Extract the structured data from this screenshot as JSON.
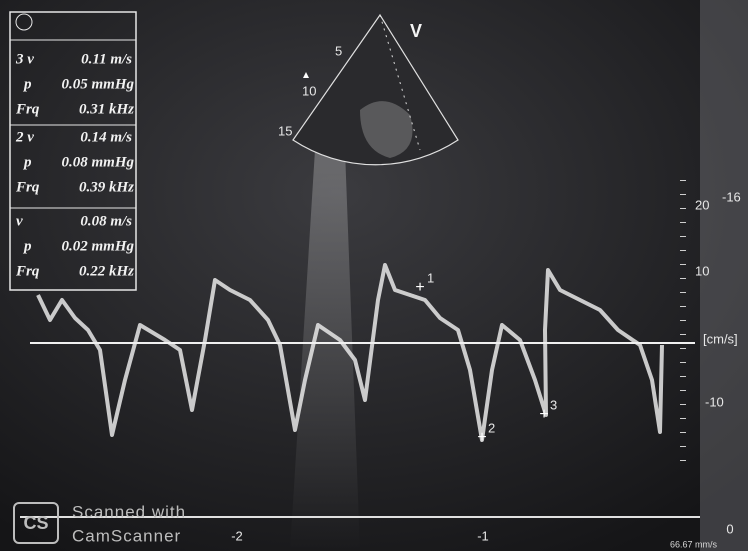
{
  "measurements": [
    {
      "v_label": "3 v",
      "v": "0.11 m/s",
      "p_label": "p",
      "p": "0.05 mmHg",
      "frq_label": "Frq",
      "frq": "0.31 kHz"
    },
    {
      "v_label": "2 v",
      "v": "0.14 m/s",
      "p_label": "p",
      "p": "0.08 mmHg",
      "frq_label": "Frq",
      "frq": "0.39 kHz"
    },
    {
      "v_label": "v",
      "v": "0.08 m/s",
      "p_label": "p",
      "p": "0.02 mmHg",
      "frq_label": "Frq",
      "frq": "0.22 kHz"
    }
  ],
  "sector": {
    "mode": "V",
    "depths": [
      "5",
      "10",
      "15"
    ]
  },
  "velocity_scale": {
    "corner": "-16",
    "ticks": [
      "20",
      "10",
      "-10"
    ],
    "unit": "[cm/s]"
  },
  "markers": [
    "1",
    "2",
    "3"
  ],
  "time_scale": [
    "-2",
    "-1",
    "0"
  ],
  "sweep_speed": "66.67 mm/s",
  "watermark": {
    "line1": "Scanned with",
    "line2": "CamScanner"
  }
}
